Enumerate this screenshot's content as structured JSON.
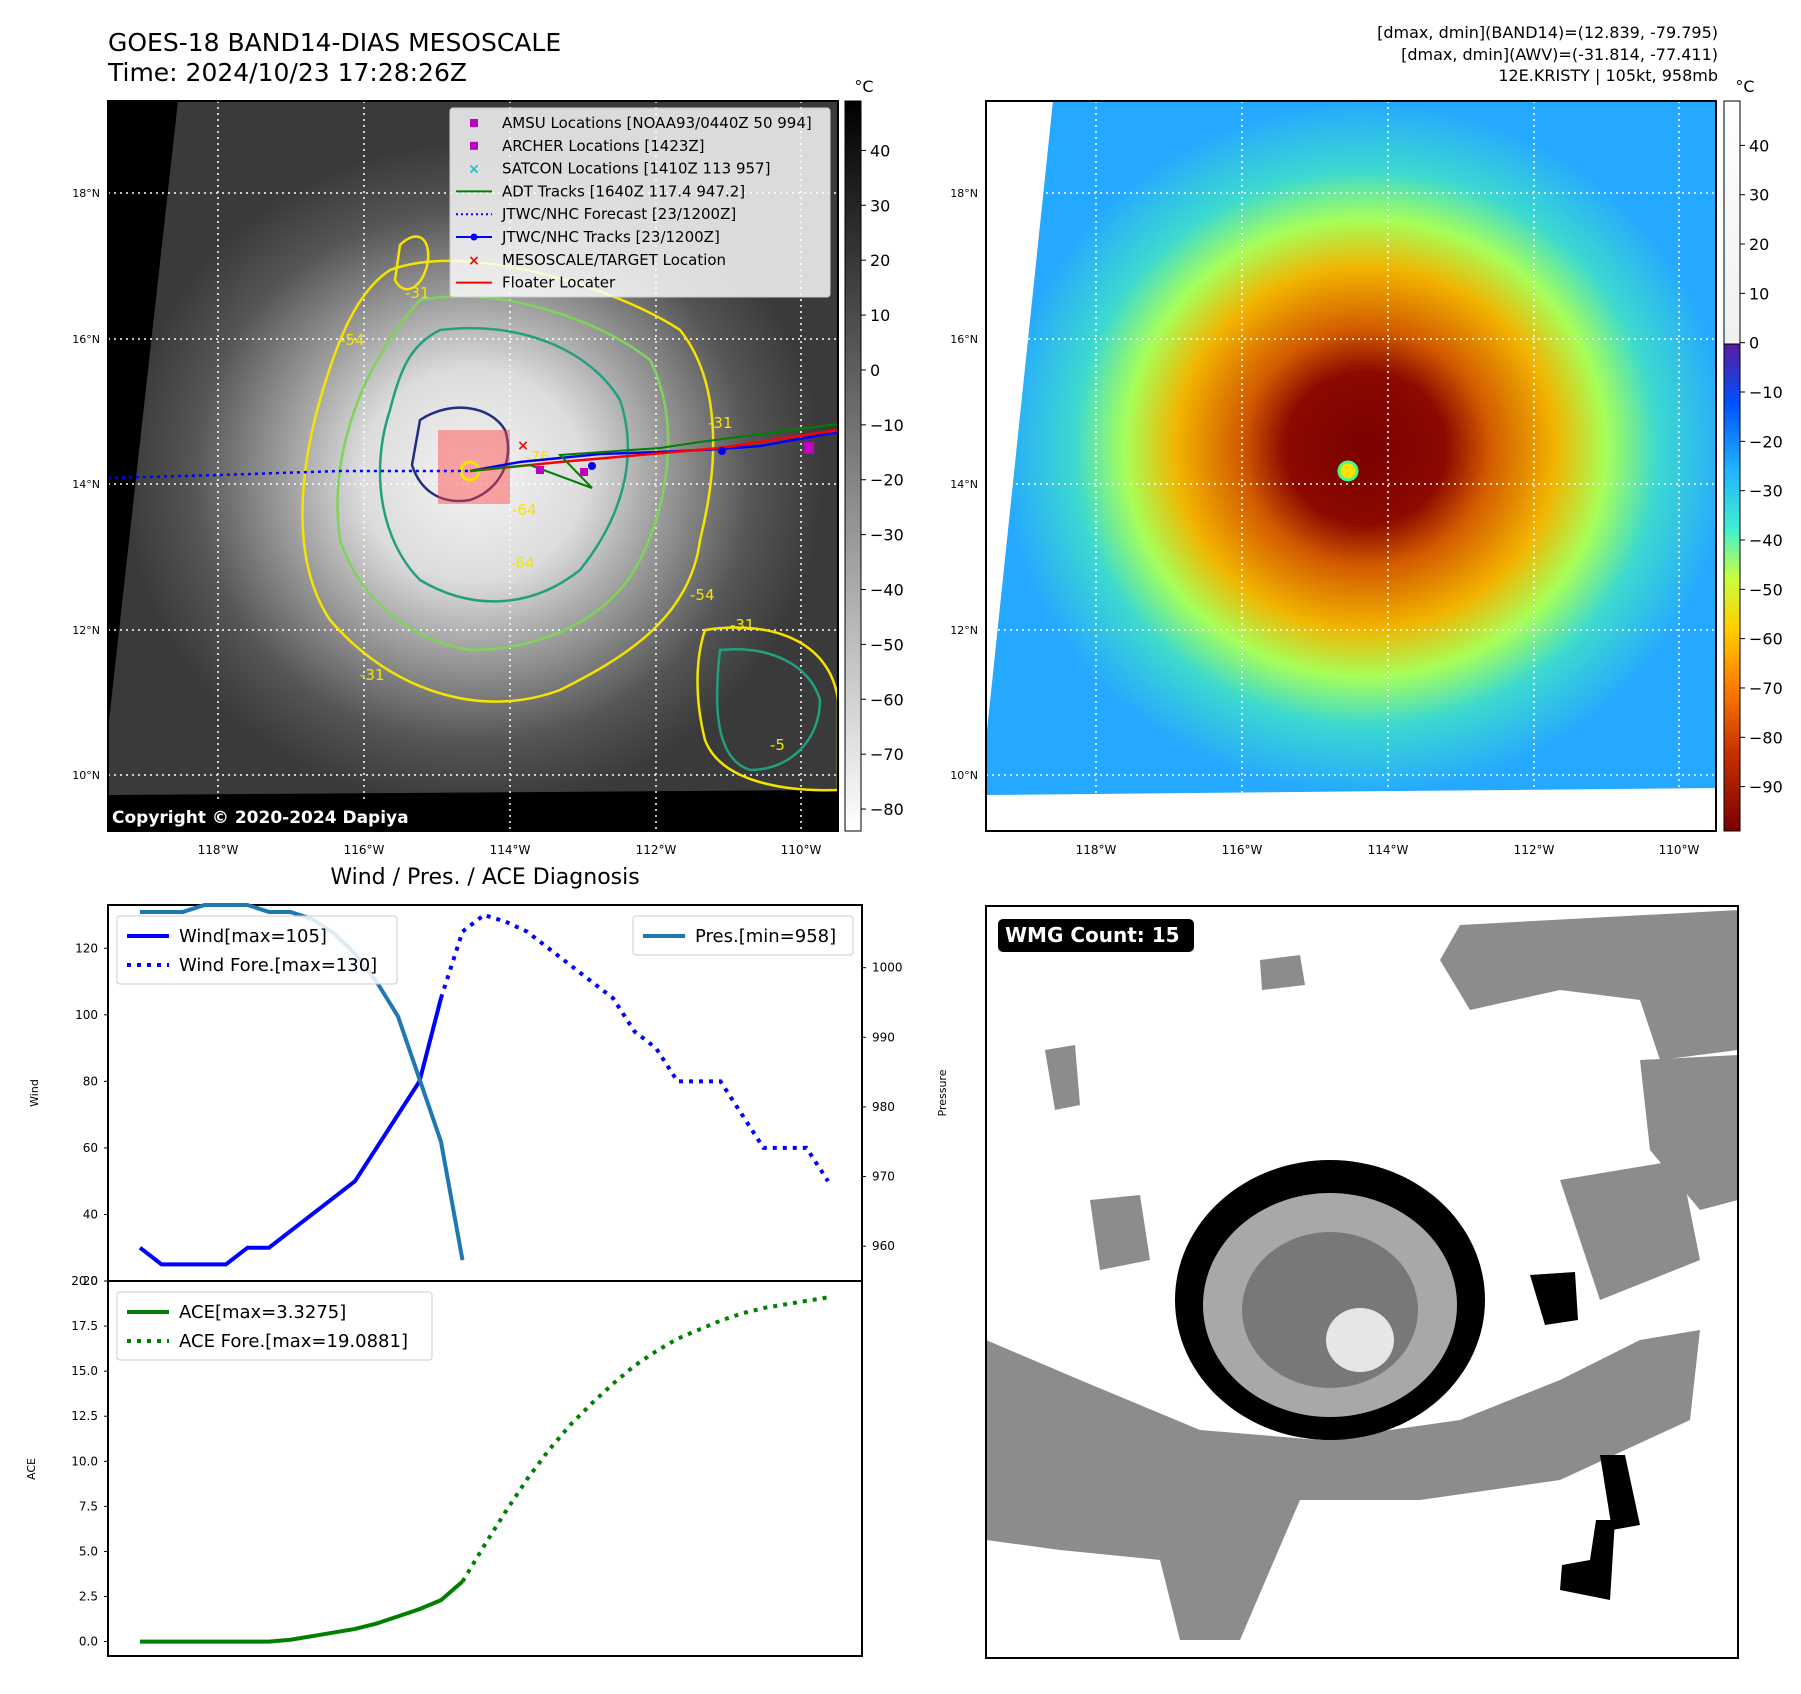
{
  "header": {
    "title": "GOES-18 BAND14-DIAS MESOSCALE",
    "time": "Time: 2024/10/23 17:28:26Z",
    "dmax_band14": "[dmax, dmin](BAND14)=(12.839, -79.795)",
    "dmax_awv": "[dmax, dmin](AWV)=(-31.814, -77.411)",
    "storm": "12E.KRISTY | 105kt, 958mb"
  },
  "colors": {
    "amsu": "#c000c0",
    "archer": "#c000c0",
    "satcon": "#20c0c0",
    "adt": "#008000",
    "jtwc": "#0000ff",
    "target": "#ff0000",
    "pres_line": "#1f77b4",
    "ace_line": "#008000"
  },
  "panel_ir": {
    "unit": "°C",
    "copyright": "Copyright © 2020-2024 Dapiya",
    "lat_labels": [
      "18°N",
      "16°N",
      "14°N",
      "12°N",
      "10°N"
    ],
    "lon_labels": [
      "118°W",
      "116°W",
      "114°W",
      "112°W",
      "110°W"
    ],
    "colorbar_ticks": [
      "40",
      "30",
      "20",
      "10",
      "0",
      "−10",
      "−20",
      "−30",
      "−40",
      "−50",
      "−60",
      "−70",
      "−80"
    ],
    "contour_labels": [
      "-31",
      "-54",
      "-64",
      "-64",
      "-76",
      "-31",
      "-31",
      "-54",
      "-5",
      "-31"
    ],
    "legend": [
      {
        "label": "AMSU Locations [NOAA93/0440Z 50 994]",
        "marker": "square",
        "color_key": "amsu"
      },
      {
        "label": "ARCHER Locations [1423Z]",
        "marker": "square",
        "color_key": "archer"
      },
      {
        "label": "SATCON Locations [1410Z 113 957]",
        "marker": "x",
        "color_key": "satcon"
      },
      {
        "label": "ADT Tracks [1640Z 117.4 947.2]",
        "marker": "line",
        "color_key": "adt"
      },
      {
        "label": "JTWC/NHC Forecast [23/1200Z]",
        "marker": "dotted",
        "color_key": "jtwc"
      },
      {
        "label": "JTWC/NHC Tracks [23/1200Z]",
        "marker": "line-dot",
        "color_key": "jtwc"
      },
      {
        "label": "MESOSCALE/TARGET Location",
        "marker": "x",
        "color_key": "target"
      },
      {
        "label": "Floater Locater",
        "marker": "line",
        "color_key": "target"
      }
    ]
  },
  "panel_awv": {
    "unit": "°C",
    "lat_labels": [
      "18°N",
      "16°N",
      "14°N",
      "12°N",
      "10°N"
    ],
    "lon_labels": [
      "118°W",
      "116°W",
      "114°W",
      "112°W",
      "110°W"
    ],
    "colorbar_ticks": [
      "40",
      "30",
      "20",
      "10",
      "0",
      "−10",
      "−20",
      "−30",
      "−40",
      "−50",
      "−60",
      "−70",
      "−80",
      "−90"
    ]
  },
  "chart_data": [
    {
      "type": "line",
      "title": "Wind / Pres. / ACE Diagnosis",
      "xlabel": "",
      "ylabel": "Wind",
      "ylabel_right": "Pressure",
      "ylim": [
        20,
        133
      ],
      "ylim_right": [
        955,
        1009
      ],
      "x": [
        0,
        1,
        2,
        3,
        4,
        5,
        6,
        7,
        8,
        9,
        10,
        11,
        12,
        13,
        14,
        15,
        16,
        17,
        18,
        19,
        20,
        21,
        22,
        23,
        24,
        25,
        26,
        27,
        28,
        29,
        30,
        31,
        32
      ],
      "yticks": [
        "120",
        "100",
        "80",
        "60",
        "40",
        "20"
      ],
      "yticks_right": [
        "1000",
        "990",
        "980",
        "970",
        "960"
      ],
      "legend_left": [
        "Wind[max=105]",
        "Wind Fore.[max=130]"
      ],
      "legend_right": [
        "Pres.[min=958]"
      ],
      "series": [
        {
          "name": "Wind[max=105]",
          "style": "solid",
          "color": "#0000ff",
          "points": [
            [
              0,
              30
            ],
            [
              1,
              25
            ],
            [
              2,
              25
            ],
            [
              3,
              25
            ],
            [
              4,
              25
            ],
            [
              5,
              30
            ],
            [
              6,
              30
            ],
            [
              7,
              35
            ],
            [
              8,
              40
            ],
            [
              9,
              45
            ],
            [
              10,
              50
            ],
            [
              11,
              60
            ],
            [
              12,
              70
            ],
            [
              13,
              80
            ],
            [
              14,
              105
            ]
          ]
        },
        {
          "name": "Wind Fore.[max=130]",
          "style": "dotted",
          "color": "#0000ff",
          "points": [
            [
              14,
              105
            ],
            [
              15,
              125
            ],
            [
              16,
              130
            ],
            [
              17,
              128
            ],
            [
              18,
              125
            ],
            [
              19,
              120
            ],
            [
              20,
              115
            ],
            [
              21,
              110
            ],
            [
              22,
              105
            ],
            [
              23,
              95
            ],
            [
              24,
              90
            ],
            [
              25,
              80
            ],
            [
              26,
              80
            ],
            [
              27,
              80
            ],
            [
              28,
              70
            ],
            [
              29,
              60
            ],
            [
              30,
              60
            ],
            [
              31,
              60
            ],
            [
              32,
              50
            ]
          ]
        },
        {
          "name": "Pres.[min=958]",
          "style": "solid",
          "color": "#1f77b4",
          "axis": "right",
          "points": [
            [
              0,
              1008
            ],
            [
              1,
              1008
            ],
            [
              2,
              1008
            ],
            [
              3,
              1009
            ],
            [
              4,
              1009
            ],
            [
              5,
              1009
            ],
            [
              6,
              1008
            ],
            [
              7,
              1008
            ],
            [
              8,
              1007
            ],
            [
              9,
              1005
            ],
            [
              10,
              1002
            ],
            [
              11,
              998
            ],
            [
              12,
              993
            ],
            [
              13,
              984
            ],
            [
              14,
              975
            ],
            [
              15,
              958
            ]
          ]
        }
      ]
    },
    {
      "type": "line",
      "title": "",
      "xlabel": "",
      "ylabel": "ACE",
      "ylim": [
        -0.8,
        20
      ],
      "x": [
        0,
        1,
        2,
        3,
        4,
        5,
        6,
        7,
        8,
        9,
        10,
        11,
        12,
        13,
        14,
        15,
        16,
        17,
        18,
        19,
        20,
        21,
        22,
        23,
        24,
        25,
        26,
        27,
        28,
        29,
        30,
        31,
        32
      ],
      "yticks": [
        "20.0",
        "17.5",
        "15.0",
        "12.5",
        "10.0",
        "7.5",
        "5.0",
        "2.5",
        "0.0"
      ],
      "legend": [
        "ACE[max=3.3275]",
        "ACE Fore.[max=19.0881]"
      ],
      "series": [
        {
          "name": "ACE[max=3.3275]",
          "style": "solid",
          "color": "#008000",
          "points": [
            [
              0,
              0
            ],
            [
              1,
              0
            ],
            [
              2,
              0
            ],
            [
              3,
              0
            ],
            [
              4,
              0
            ],
            [
              5,
              0
            ],
            [
              6,
              0
            ],
            [
              7,
              0.1
            ],
            [
              8,
              0.3
            ],
            [
              9,
              0.5
            ],
            [
              10,
              0.7
            ],
            [
              11,
              1.0
            ],
            [
              12,
              1.4
            ],
            [
              13,
              1.8
            ],
            [
              14,
              2.3
            ],
            [
              15,
              3.33
            ]
          ]
        },
        {
          "name": "ACE Fore.[max=19.0881]",
          "style": "dotted",
          "color": "#008000",
          "points": [
            [
              15,
              3.33
            ],
            [
              16,
              5.3
            ],
            [
              17,
              7.2
            ],
            [
              18,
              9.0
            ],
            [
              19,
              10.6
            ],
            [
              20,
              12.0
            ],
            [
              21,
              13.2
            ],
            [
              22,
              14.3
            ],
            [
              23,
              15.3
            ],
            [
              24,
              16.1
            ],
            [
              25,
              16.8
            ],
            [
              26,
              17.3
            ],
            [
              27,
              17.8
            ],
            [
              28,
              18.2
            ],
            [
              29,
              18.5
            ],
            [
              30,
              18.7
            ],
            [
              31,
              18.9
            ],
            [
              32,
              19.09
            ]
          ]
        }
      ]
    }
  ],
  "panel_wmg": {
    "badge": "WMG Count: 15"
  }
}
